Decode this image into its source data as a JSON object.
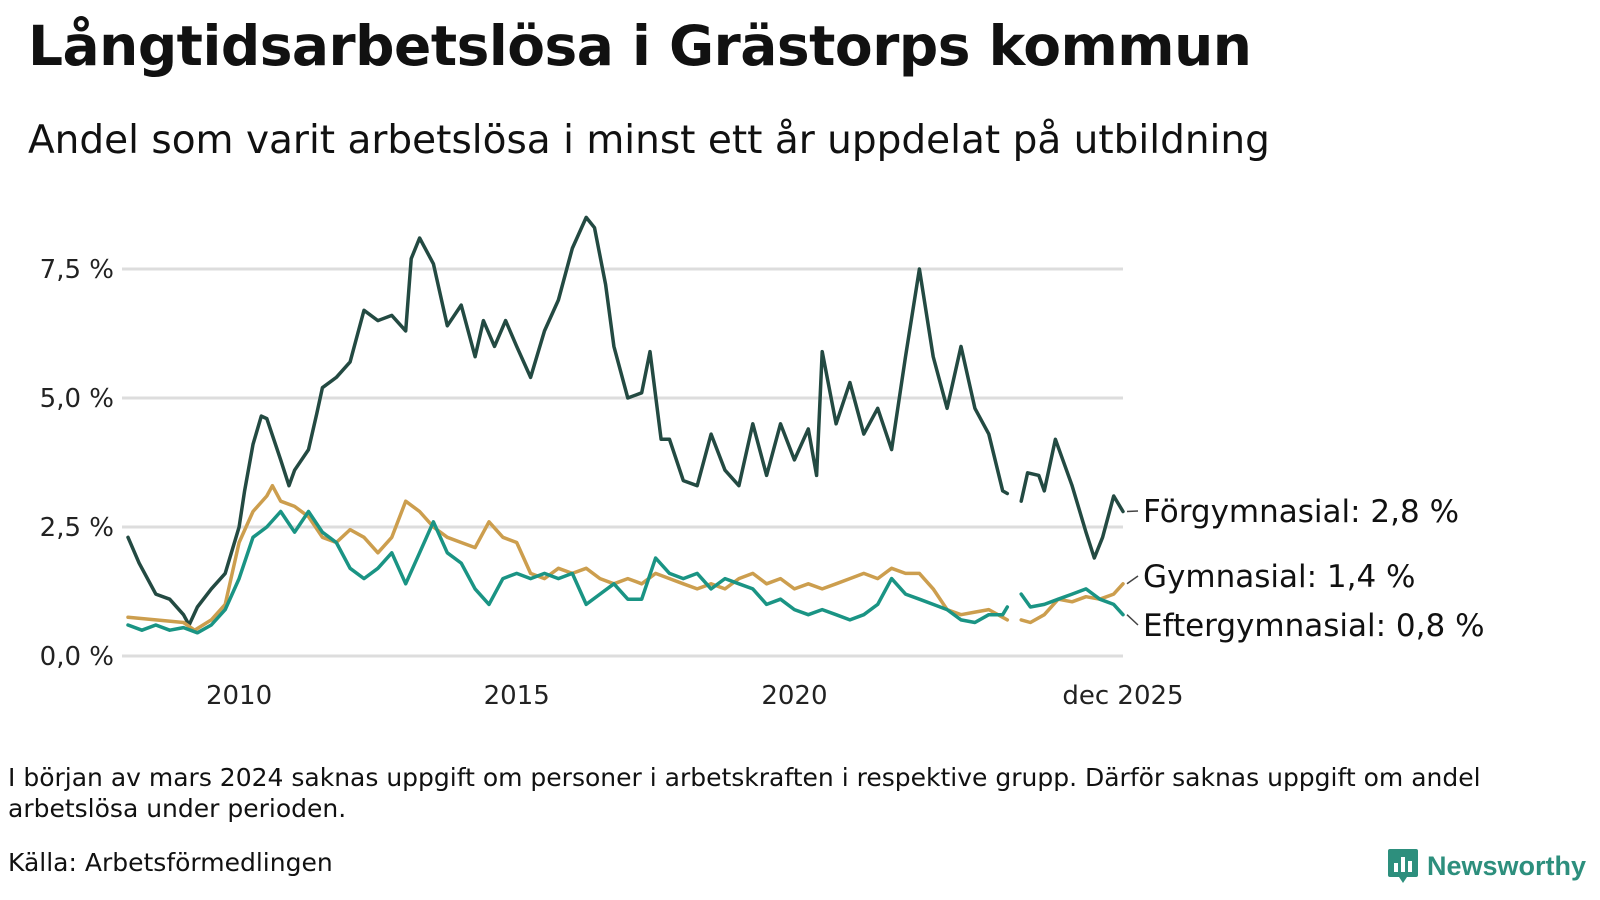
{
  "title": "Långtidsarbetslösa i Grästorps kommun",
  "subtitle": "Andel som varit arbetslösa i minst ett år uppdelat på utbildning",
  "footnote": "I början av mars 2024 saknas uppgift om personer i arbetskraften i respektive grupp. Därför saknas uppgift om andel arbetslösa under perioden.",
  "source": "Källa: Arbetsförmedlingen",
  "brand": "Newsworthy",
  "colors": {
    "brand": "#2d8f7d",
    "grid": "#dddddd",
    "leader": "#444444"
  },
  "chart_data": {
    "type": "line",
    "title": "Långtidsarbetslösa i Grästorps kommun",
    "xlabel": "",
    "ylabel": "",
    "xlim": [
      2008.0,
      2025.917
    ],
    "ylim": [
      0,
      8.6
    ],
    "y_ticks": [
      0,
      2.5,
      5.0,
      7.5
    ],
    "y_tick_labels": [
      "0,0 %",
      "2,5 %",
      "5,0 %",
      "7,5 %"
    ],
    "x_ticks": [
      2010,
      2015,
      2020,
      2025.917
    ],
    "x_tick_labels": [
      "2010",
      "2015",
      "2020",
      "dec 2025"
    ],
    "grid": true,
    "gap": [
      2023.833,
      2024.083
    ],
    "series": [
      {
        "name": "Förgymnasial",
        "end_label": "Förgymnasial: 2,8 %",
        "last_value": 2.8,
        "color": "#234a42",
        "points": [
          [
            2008.0,
            2.3
          ],
          [
            2008.2,
            1.8
          ],
          [
            2008.5,
            1.2
          ],
          [
            2008.75,
            1.1
          ],
          [
            2009.0,
            0.8
          ],
          [
            2009.1,
            0.6
          ],
          [
            2009.25,
            0.95
          ],
          [
            2009.5,
            1.3
          ],
          [
            2009.75,
            1.6
          ],
          [
            2010.0,
            2.5
          ],
          [
            2010.1,
            3.2
          ],
          [
            2010.25,
            4.1
          ],
          [
            2010.4,
            4.65
          ],
          [
            2010.5,
            4.6
          ],
          [
            2010.75,
            3.8
          ],
          [
            2010.9,
            3.3
          ],
          [
            2011.0,
            3.6
          ],
          [
            2011.25,
            4.0
          ],
          [
            2011.4,
            4.7
          ],
          [
            2011.5,
            5.2
          ],
          [
            2011.75,
            5.4
          ],
          [
            2012.0,
            5.7
          ],
          [
            2012.25,
            6.7
          ],
          [
            2012.5,
            6.5
          ],
          [
            2012.75,
            6.6
          ],
          [
            2013.0,
            6.3
          ],
          [
            2013.1,
            7.7
          ],
          [
            2013.25,
            8.1
          ],
          [
            2013.5,
            7.6
          ],
          [
            2013.75,
            6.4
          ],
          [
            2014.0,
            6.8
          ],
          [
            2014.25,
            5.8
          ],
          [
            2014.4,
            6.5
          ],
          [
            2014.6,
            6.0
          ],
          [
            2014.8,
            6.5
          ],
          [
            2015.0,
            6.0
          ],
          [
            2015.25,
            5.4
          ],
          [
            2015.5,
            6.3
          ],
          [
            2015.75,
            6.9
          ],
          [
            2016.0,
            7.9
          ],
          [
            2016.25,
            8.5
          ],
          [
            2016.4,
            8.3
          ],
          [
            2016.6,
            7.2
          ],
          [
            2016.75,
            6.0
          ],
          [
            2017.0,
            5.0
          ],
          [
            2017.25,
            5.1
          ],
          [
            2017.4,
            5.9
          ],
          [
            2017.6,
            4.2
          ],
          [
            2017.75,
            4.2
          ],
          [
            2018.0,
            3.4
          ],
          [
            2018.25,
            3.3
          ],
          [
            2018.5,
            4.3
          ],
          [
            2018.75,
            3.6
          ],
          [
            2019.0,
            3.3
          ],
          [
            2019.25,
            4.5
          ],
          [
            2019.5,
            3.5
          ],
          [
            2019.75,
            4.5
          ],
          [
            2020.0,
            3.8
          ],
          [
            2020.25,
            4.4
          ],
          [
            2020.4,
            3.5
          ],
          [
            2020.5,
            5.9
          ],
          [
            2020.75,
            4.5
          ],
          [
            2021.0,
            5.3
          ],
          [
            2021.25,
            4.3
          ],
          [
            2021.5,
            4.8
          ],
          [
            2021.75,
            4.0
          ],
          [
            2022.0,
            5.8
          ],
          [
            2022.25,
            7.5
          ],
          [
            2022.5,
            5.8
          ],
          [
            2022.75,
            4.8
          ],
          [
            2023.0,
            6.0
          ],
          [
            2023.25,
            4.8
          ],
          [
            2023.5,
            4.3
          ],
          [
            2023.75,
            3.2
          ],
          [
            2023.833,
            3.15
          ],
          [
            null,
            null
          ],
          [
            2024.083,
            3.0
          ],
          [
            2024.2,
            3.55
          ],
          [
            2024.4,
            3.5
          ],
          [
            2024.5,
            3.2
          ],
          [
            2024.7,
            4.2
          ],
          [
            2025.0,
            3.3
          ],
          [
            2025.25,
            2.4
          ],
          [
            2025.4,
            1.9
          ],
          [
            2025.55,
            2.3
          ],
          [
            2025.75,
            3.1
          ],
          [
            2025.917,
            2.8
          ]
        ]
      },
      {
        "name": "Gymnasial",
        "end_label": "Gymnasial: 1,4 %",
        "last_value": 1.4,
        "color": "#cc9e4e",
        "points": [
          [
            2008.0,
            0.75
          ],
          [
            2008.5,
            0.7
          ],
          [
            2009.0,
            0.65
          ],
          [
            2009.2,
            0.5
          ],
          [
            2009.5,
            0.7
          ],
          [
            2009.75,
            1.0
          ],
          [
            2010.0,
            2.2
          ],
          [
            2010.25,
            2.8
          ],
          [
            2010.5,
            3.1
          ],
          [
            2010.6,
            3.3
          ],
          [
            2010.75,
            3.0
          ],
          [
            2011.0,
            2.9
          ],
          [
            2011.25,
            2.7
          ],
          [
            2011.5,
            2.3
          ],
          [
            2011.75,
            2.2
          ],
          [
            2012.0,
            2.45
          ],
          [
            2012.25,
            2.3
          ],
          [
            2012.5,
            2.0
          ],
          [
            2012.75,
            2.3
          ],
          [
            2013.0,
            3.0
          ],
          [
            2013.25,
            2.8
          ],
          [
            2013.5,
            2.5
          ],
          [
            2013.75,
            2.3
          ],
          [
            2014.0,
            2.2
          ],
          [
            2014.25,
            2.1
          ],
          [
            2014.5,
            2.6
          ],
          [
            2014.75,
            2.3
          ],
          [
            2015.0,
            2.2
          ],
          [
            2015.25,
            1.6
          ],
          [
            2015.5,
            1.5
          ],
          [
            2015.75,
            1.7
          ],
          [
            2016.0,
            1.6
          ],
          [
            2016.25,
            1.7
          ],
          [
            2016.5,
            1.5
          ],
          [
            2016.75,
            1.4
          ],
          [
            2017.0,
            1.5
          ],
          [
            2017.25,
            1.4
          ],
          [
            2017.5,
            1.6
          ],
          [
            2017.75,
            1.5
          ],
          [
            2018.0,
            1.4
          ],
          [
            2018.25,
            1.3
          ],
          [
            2018.5,
            1.4
          ],
          [
            2018.75,
            1.3
          ],
          [
            2019.0,
            1.5
          ],
          [
            2019.25,
            1.6
          ],
          [
            2019.5,
            1.4
          ],
          [
            2019.75,
            1.5
          ],
          [
            2020.0,
            1.3
          ],
          [
            2020.25,
            1.4
          ],
          [
            2020.5,
            1.3
          ],
          [
            2020.75,
            1.4
          ],
          [
            2021.0,
            1.5
          ],
          [
            2021.25,
            1.6
          ],
          [
            2021.5,
            1.5
          ],
          [
            2021.75,
            1.7
          ],
          [
            2022.0,
            1.6
          ],
          [
            2022.25,
            1.6
          ],
          [
            2022.5,
            1.3
          ],
          [
            2022.75,
            0.9
          ],
          [
            2023.0,
            0.8
          ],
          [
            2023.25,
            0.85
          ],
          [
            2023.5,
            0.9
          ],
          [
            2023.75,
            0.75
          ],
          [
            2023.833,
            0.7
          ],
          [
            null,
            null
          ],
          [
            2024.083,
            0.7
          ],
          [
            2024.25,
            0.65
          ],
          [
            2024.5,
            0.8
          ],
          [
            2024.75,
            1.1
          ],
          [
            2025.0,
            1.05
          ],
          [
            2025.25,
            1.15
          ],
          [
            2025.5,
            1.1
          ],
          [
            2025.75,
            1.2
          ],
          [
            2025.917,
            1.4
          ]
        ]
      },
      {
        "name": "Eftergymnasial",
        "end_label": "Eftergymnasial: 0,8 %",
        "last_value": 0.8,
        "color": "#1a9484",
        "points": [
          [
            2008.0,
            0.6
          ],
          [
            2008.25,
            0.5
          ],
          [
            2008.5,
            0.6
          ],
          [
            2008.75,
            0.5
          ],
          [
            2009.0,
            0.55
          ],
          [
            2009.25,
            0.45
          ],
          [
            2009.5,
            0.6
          ],
          [
            2009.75,
            0.9
          ],
          [
            2010.0,
            1.5
          ],
          [
            2010.25,
            2.3
          ],
          [
            2010.5,
            2.5
          ],
          [
            2010.75,
            2.8
          ],
          [
            2011.0,
            2.4
          ],
          [
            2011.25,
            2.8
          ],
          [
            2011.5,
            2.4
          ],
          [
            2011.75,
            2.2
          ],
          [
            2012.0,
            1.7
          ],
          [
            2012.25,
            1.5
          ],
          [
            2012.5,
            1.7
          ],
          [
            2012.75,
            2.0
          ],
          [
            2013.0,
            1.4
          ],
          [
            2013.25,
            2.0
          ],
          [
            2013.5,
            2.6
          ],
          [
            2013.75,
            2.0
          ],
          [
            2014.0,
            1.8
          ],
          [
            2014.25,
            1.3
          ],
          [
            2014.5,
            1.0
          ],
          [
            2014.75,
            1.5
          ],
          [
            2015.0,
            1.6
          ],
          [
            2015.25,
            1.5
          ],
          [
            2015.5,
            1.6
          ],
          [
            2015.75,
            1.5
          ],
          [
            2016.0,
            1.6
          ],
          [
            2016.25,
            1.0
          ],
          [
            2016.5,
            1.2
          ],
          [
            2016.75,
            1.4
          ],
          [
            2017.0,
            1.1
          ],
          [
            2017.25,
            1.1
          ],
          [
            2017.5,
            1.9
          ],
          [
            2017.75,
            1.6
          ],
          [
            2018.0,
            1.5
          ],
          [
            2018.25,
            1.6
          ],
          [
            2018.5,
            1.3
          ],
          [
            2018.75,
            1.5
          ],
          [
            2019.0,
            1.4
          ],
          [
            2019.25,
            1.3
          ],
          [
            2019.5,
            1.0
          ],
          [
            2019.75,
            1.1
          ],
          [
            2020.0,
            0.9
          ],
          [
            2020.25,
            0.8
          ],
          [
            2020.5,
            0.9
          ],
          [
            2020.75,
            0.8
          ],
          [
            2021.0,
            0.7
          ],
          [
            2021.25,
            0.8
          ],
          [
            2021.5,
            1.0
          ],
          [
            2021.75,
            1.5
          ],
          [
            2022.0,
            1.2
          ],
          [
            2022.25,
            1.1
          ],
          [
            2022.5,
            1.0
          ],
          [
            2022.75,
            0.9
          ],
          [
            2023.0,
            0.7
          ],
          [
            2023.25,
            0.65
          ],
          [
            2023.5,
            0.8
          ],
          [
            2023.75,
            0.8
          ],
          [
            2023.833,
            0.95
          ],
          [
            null,
            null
          ],
          [
            2024.083,
            1.2
          ],
          [
            2024.25,
            0.95
          ],
          [
            2024.5,
            1.0
          ],
          [
            2024.75,
            1.1
          ],
          [
            2025.0,
            1.2
          ],
          [
            2025.25,
            1.3
          ],
          [
            2025.5,
            1.1
          ],
          [
            2025.75,
            1.0
          ],
          [
            2025.917,
            0.8
          ]
        ]
      }
    ]
  }
}
